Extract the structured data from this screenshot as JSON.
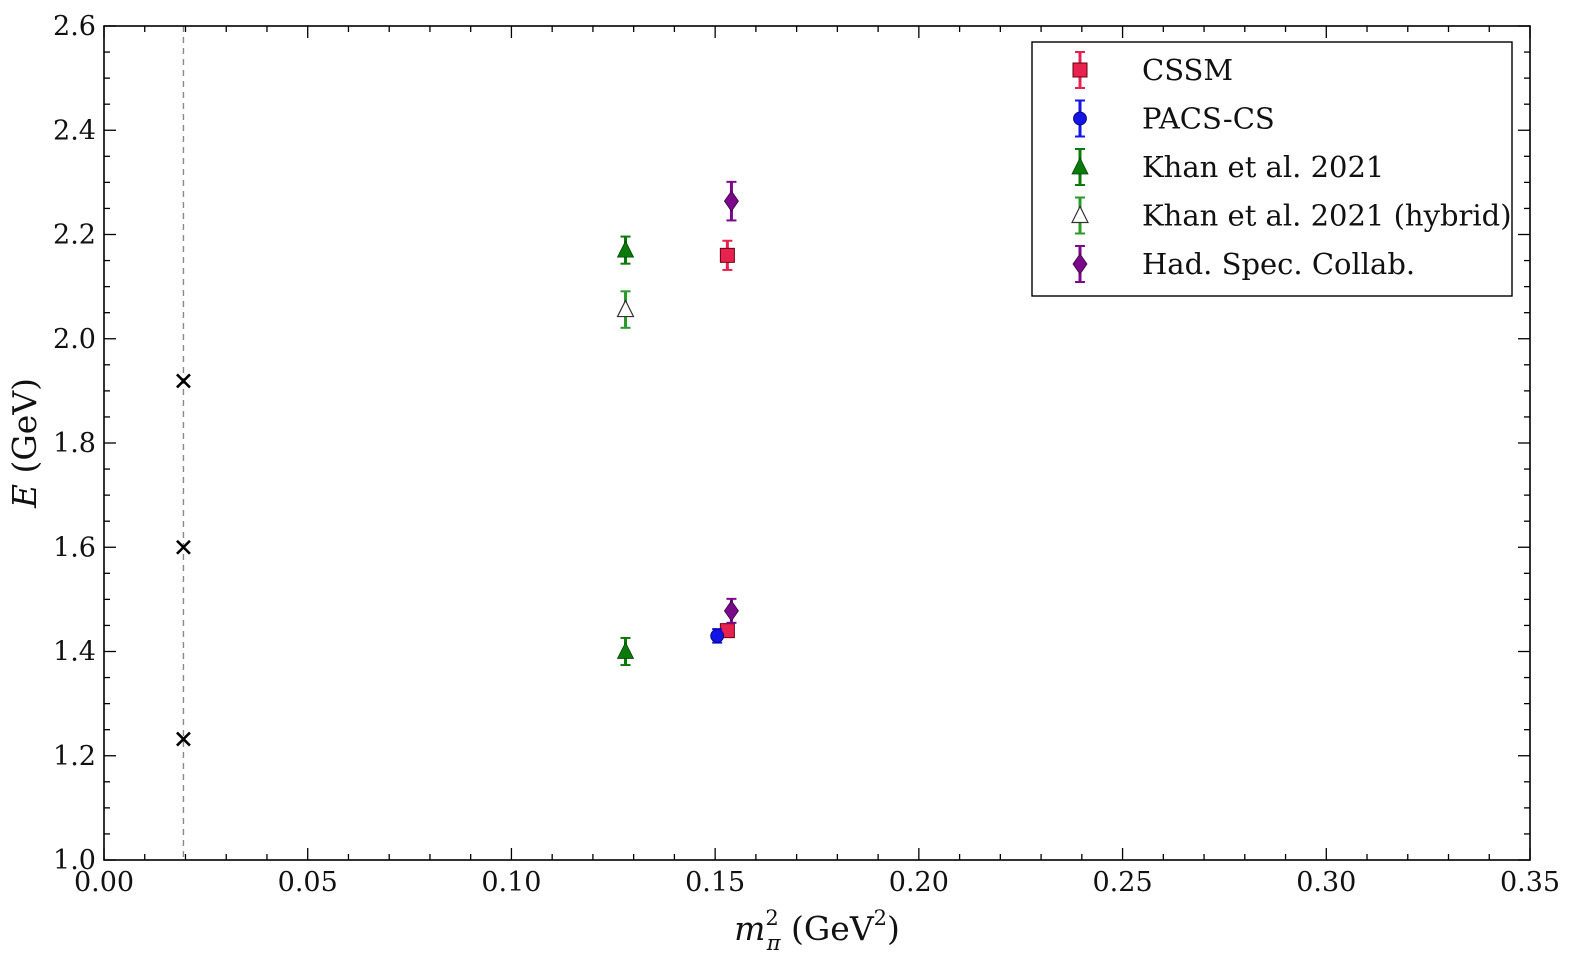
{
  "chart_data": {
    "type": "scatter",
    "xlabel": {
      "base": "m",
      "sup": "2",
      "sub": "π",
      "unit_open": " (GeV",
      "unit_sup": "2",
      "unit_close": ")"
    },
    "ylabel": {
      "var": "E",
      "unit": " (GeV)"
    },
    "xlim": [
      0.0,
      0.35
    ],
    "ylim": [
      1.0,
      2.6
    ],
    "x_ticks": [
      "0.00",
      "0.05",
      "0.10",
      "0.15",
      "0.20",
      "0.25",
      "0.30",
      "0.35"
    ],
    "y_ticks": [
      "1.0",
      "1.2",
      "1.4",
      "1.6",
      "1.8",
      "2.0",
      "2.2",
      "2.4",
      "2.6"
    ],
    "grid": false,
    "legend_position": "top-right",
    "reference_line": {
      "x": 0.0195,
      "style": "dashed",
      "color": "#888888"
    },
    "reference_points": {
      "marker": "x",
      "color": "#000000",
      "points": [
        {
          "x": 0.0195,
          "y": 1.919
        },
        {
          "x": 0.0195,
          "y": 1.6
        },
        {
          "x": 0.0195,
          "y": 1.232
        }
      ]
    },
    "series": [
      {
        "name": "CSSM",
        "marker": "square",
        "color": "#e8224f",
        "points": [
          {
            "x": 0.153,
            "y": 2.16,
            "err": 0.028
          },
          {
            "x": 0.153,
            "y": 1.44,
            "err": 0.012
          }
        ]
      },
      {
        "name": "PACS-CS",
        "marker": "circle",
        "color": "#1414e6",
        "points": [
          {
            "x": 0.1505,
            "y": 1.43,
            "err": 0.013
          }
        ]
      },
      {
        "name": "Khan et al. 2021",
        "marker": "triangle",
        "color": "#0a7a0a",
        "points": [
          {
            "x": 0.128,
            "y": 2.17,
            "err": 0.026
          },
          {
            "x": 0.128,
            "y": 1.4,
            "err": 0.026
          }
        ]
      },
      {
        "name": "Khan et al. 2021 (hybrid)",
        "marker": "triangle-open",
        "color": "#2a9a2a",
        "points": [
          {
            "x": 0.128,
            "y": 2.056,
            "err": 0.035
          }
        ]
      },
      {
        "name": "Had. Spec. Collab.",
        "marker": "diamond",
        "color": "#7a0a8a",
        "points": [
          {
            "x": 0.154,
            "y": 2.264,
            "err": 0.037
          },
          {
            "x": 0.154,
            "y": 1.478,
            "err": 0.023
          }
        ]
      }
    ]
  }
}
